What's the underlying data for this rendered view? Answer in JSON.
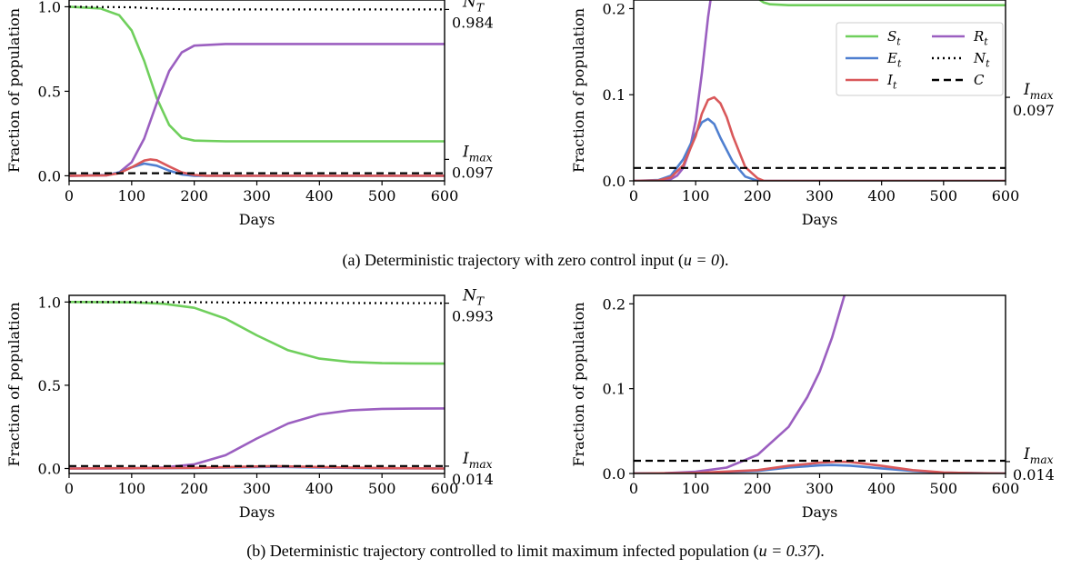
{
  "figure": {
    "caption_a_pre": "(a) Deterministic trajectory with zero control input (",
    "caption_a_math": "u = 0",
    "caption_a_post": ").",
    "caption_b_pre": "(b) Deterministic trajectory controlled to limit maximum infected population (",
    "caption_b_math": "u = 0.37",
    "caption_b_post": ")."
  },
  "colors": {
    "S": "#6fcf5c",
    "E": "#4f7fd0",
    "I": "#d9585a",
    "R": "#9b5fc0",
    "N": "#000000",
    "C": "#000000"
  },
  "chart_data": [
    {
      "type": "line",
      "id": "a-full",
      "xlabel": "Days",
      "ylabel": "Fraction of population",
      "xlim": [
        0,
        600
      ],
      "ylim": [
        -0.03,
        1.04
      ],
      "xticks": [
        "0",
        "100",
        "200",
        "300",
        "400",
        "500",
        "600"
      ],
      "yticks": [
        "0.0",
        "0.5",
        "1.0"
      ],
      "right_annotations": [
        {
          "label": "N_T",
          "value": "0.984",
          "y": 0.984
        },
        {
          "label": "I_max",
          "value": "0.097",
          "y": 0.097
        }
      ],
      "grid": false,
      "series": [
        {
          "name": "S_t",
          "x": [
            0,
            50,
            80,
            100,
            120,
            140,
            160,
            180,
            200,
            250,
            600
          ],
          "y": [
            1.0,
            0.99,
            0.95,
            0.86,
            0.68,
            0.46,
            0.3,
            0.225,
            0.208,
            0.204,
            0.204
          ]
        },
        {
          "name": "E_t",
          "x": [
            0,
            60,
            80,
            100,
            120,
            140,
            160,
            180,
            200,
            600
          ],
          "y": [
            0.0,
            0.005,
            0.02,
            0.05,
            0.072,
            0.06,
            0.03,
            0.008,
            0.0,
            0.0
          ]
        },
        {
          "name": "I_t",
          "x": [
            0,
            60,
            80,
            100,
            120,
            130,
            140,
            160,
            180,
            200,
            220,
            600
          ],
          "y": [
            0.0,
            0.003,
            0.015,
            0.05,
            0.09,
            0.097,
            0.092,
            0.055,
            0.02,
            0.005,
            0.0,
            0.0
          ]
        },
        {
          "name": "R_t",
          "x": [
            0,
            60,
            80,
            100,
            120,
            140,
            160,
            180,
            200,
            250,
            600
          ],
          "y": [
            0.0,
            0.002,
            0.02,
            0.08,
            0.22,
            0.43,
            0.62,
            0.73,
            0.77,
            0.78,
            0.78
          ]
        },
        {
          "name": "N_t",
          "x": [
            0,
            100,
            150,
            200,
            600
          ],
          "y": [
            1.0,
            0.997,
            0.988,
            0.984,
            0.984
          ]
        },
        {
          "name": "C",
          "x": [
            0,
            600
          ],
          "y": [
            0.015,
            0.015
          ]
        }
      ]
    },
    {
      "type": "line",
      "id": "a-zoom",
      "xlabel": "Days",
      "ylabel": "Fraction of population",
      "xlim": [
        0,
        600
      ],
      "ylim": [
        0,
        0.21
      ],
      "xticks": [
        "0",
        "100",
        "200",
        "300",
        "400",
        "500",
        "600"
      ],
      "yticks": [
        "0.0",
        "0.1",
        "0.2"
      ],
      "right_annotations": [
        {
          "label": "I_max",
          "value": "0.097",
          "y": 0.097
        }
      ],
      "legend": {
        "placement": "upper-right",
        "entries": [
          "S_t",
          "E_t",
          "I_t",
          "R_t",
          "N_t",
          "C"
        ]
      },
      "grid": false,
      "series": [
        {
          "name": "S_t",
          "x": [
            180,
            190,
            200,
            210,
            220,
            250,
            600
          ],
          "y": [
            0.26,
            0.23,
            0.212,
            0.207,
            0.205,
            0.204,
            0.204
          ]
        },
        {
          "name": "E_t",
          "x": [
            0,
            40,
            60,
            80,
            100,
            110,
            120,
            130,
            140,
            160,
            180,
            200,
            600
          ],
          "y": [
            0.0,
            0.001,
            0.006,
            0.025,
            0.055,
            0.068,
            0.072,
            0.066,
            0.05,
            0.022,
            0.005,
            0.0,
            0.0
          ]
        },
        {
          "name": "I_t",
          "x": [
            0,
            40,
            60,
            80,
            100,
            110,
            120,
            130,
            140,
            150,
            160,
            180,
            200,
            210,
            600
          ],
          "y": [
            0.0,
            0.0005,
            0.004,
            0.018,
            0.052,
            0.078,
            0.094,
            0.097,
            0.09,
            0.074,
            0.052,
            0.016,
            0.003,
            0.0,
            0.0
          ]
        },
        {
          "name": "R_t",
          "x": [
            0,
            40,
            60,
            70,
            80,
            90,
            100,
            110,
            120,
            125
          ],
          "y": [
            0.0,
            0.0003,
            0.002,
            0.006,
            0.015,
            0.035,
            0.07,
            0.125,
            0.19,
            0.215
          ]
        },
        {
          "name": "C",
          "x": [
            0,
            600
          ],
          "y": [
            0.015,
            0.015
          ]
        }
      ]
    },
    {
      "type": "line",
      "id": "b-full",
      "xlabel": "Days",
      "ylabel": "Fraction of population",
      "xlim": [
        0,
        600
      ],
      "ylim": [
        -0.03,
        1.04
      ],
      "xticks": [
        "0",
        "100",
        "200",
        "300",
        "400",
        "500",
        "600"
      ],
      "yticks": [
        "0.0",
        "0.5",
        "1.0"
      ],
      "right_annotations": [
        {
          "label": "N_T",
          "value": "0.993",
          "y": 0.993
        },
        {
          "label": "I_max",
          "value": "0.014",
          "y": 0.014
        }
      ],
      "grid": false,
      "series": [
        {
          "name": "S_t",
          "x": [
            0,
            100,
            150,
            200,
            250,
            300,
            350,
            400,
            450,
            500,
            550,
            600
          ],
          "y": [
            1.0,
            0.998,
            0.99,
            0.965,
            0.9,
            0.8,
            0.71,
            0.66,
            0.64,
            0.633,
            0.631,
            0.63
          ]
        },
        {
          "name": "E_t",
          "x": [
            0,
            200,
            300,
            330,
            400,
            500,
            600
          ],
          "y": [
            0.0,
            0.003,
            0.009,
            0.01,
            0.006,
            0.001,
            0.0
          ]
        },
        {
          "name": "I_t",
          "x": [
            0,
            200,
            300,
            330,
            400,
            500,
            600
          ],
          "y": [
            0.0,
            0.004,
            0.012,
            0.014,
            0.009,
            0.002,
            0.0
          ]
        },
        {
          "name": "R_t",
          "x": [
            0,
            100,
            150,
            200,
            250,
            300,
            350,
            400,
            450,
            500,
            550,
            600
          ],
          "y": [
            0.0,
            0.001,
            0.006,
            0.025,
            0.08,
            0.18,
            0.27,
            0.325,
            0.35,
            0.358,
            0.36,
            0.361
          ]
        },
        {
          "name": "N_t",
          "x": [
            0,
            200,
            300,
            400,
            600
          ],
          "y": [
            1.0,
            0.999,
            0.996,
            0.994,
            0.993
          ]
        },
        {
          "name": "C",
          "x": [
            0,
            600
          ],
          "y": [
            0.015,
            0.015
          ]
        }
      ]
    },
    {
      "type": "line",
      "id": "b-zoom",
      "xlabel": "Days",
      "ylabel": "Fraction of population",
      "xlim": [
        0,
        600
      ],
      "ylim": [
        0,
        0.21
      ],
      "xticks": [
        "0",
        "100",
        "200",
        "300",
        "400",
        "500",
        "600"
      ],
      "yticks": [
        "0.0",
        "0.1",
        "0.2"
      ],
      "right_annotations": [
        {
          "label": "I_max",
          "value": "0.014",
          "y": 0.014
        }
      ],
      "grid": false,
      "series": [
        {
          "name": "E_t",
          "x": [
            0,
            100,
            200,
            250,
            300,
            320,
            350,
            400,
            450,
            500,
            600
          ],
          "y": [
            0.0,
            0.0005,
            0.003,
            0.007,
            0.0095,
            0.01,
            0.0092,
            0.006,
            0.003,
            0.001,
            0.0
          ]
        },
        {
          "name": "I_t",
          "x": [
            0,
            100,
            200,
            250,
            300,
            330,
            350,
            400,
            450,
            500,
            550,
            600
          ],
          "y": [
            0.0,
            0.0006,
            0.004,
            0.009,
            0.0128,
            0.014,
            0.0135,
            0.009,
            0.004,
            0.0012,
            0.0003,
            0.0
          ]
        },
        {
          "name": "R_t",
          "x": [
            0,
            50,
            100,
            150,
            200,
            250,
            280,
            300,
            320,
            340
          ],
          "y": [
            0.0,
            0.0003,
            0.002,
            0.007,
            0.022,
            0.055,
            0.09,
            0.12,
            0.16,
            0.21
          ]
        },
        {
          "name": "C",
          "x": [
            0,
            600
          ],
          "y": [
            0.015,
            0.015
          ]
        }
      ]
    }
  ]
}
